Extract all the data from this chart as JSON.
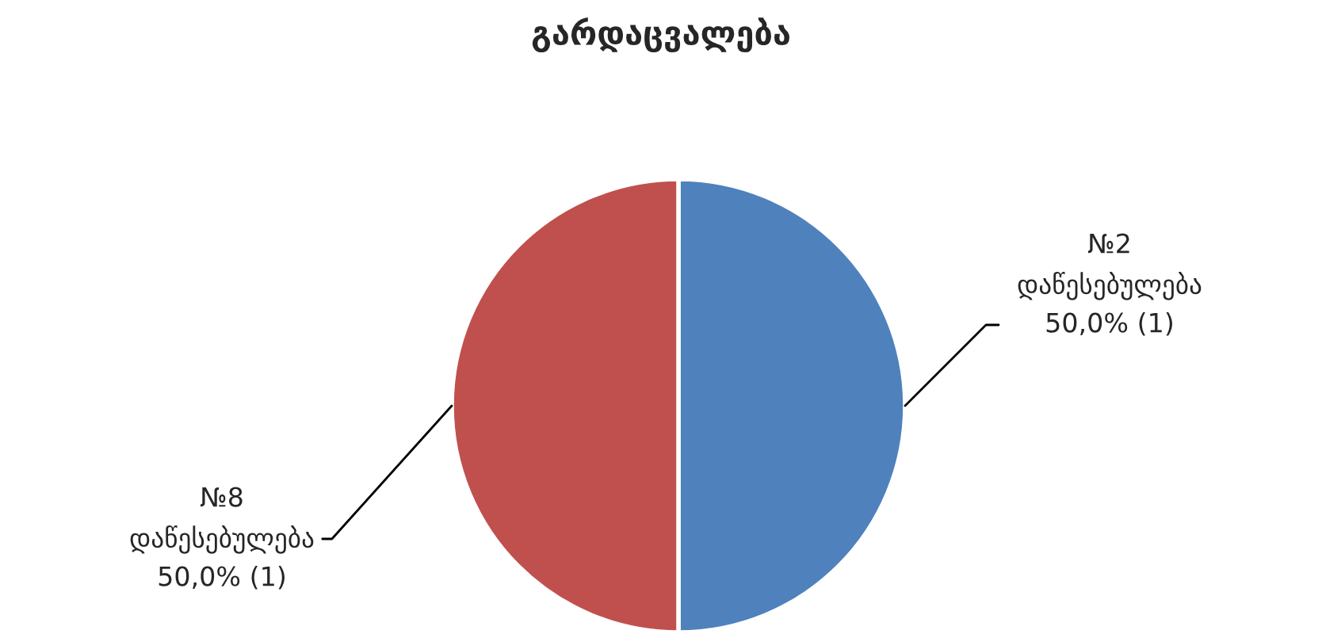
{
  "chart_data": {
    "type": "pie",
    "title": "გარდაცვალება",
    "categories": [
      "№2\nდაწესებულება",
      "№8\nდაწესებულება"
    ],
    "values": [
      1,
      1
    ],
    "value_labels": [
      "50,0% (1)",
      "50,0% (1)"
    ],
    "colors": [
      "#4f81bd",
      "#c0504d"
    ],
    "legend": false
  }
}
